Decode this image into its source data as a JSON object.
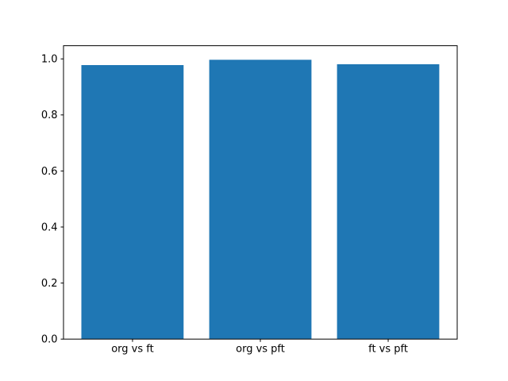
{
  "chart_data": {
    "type": "bar",
    "title": "",
    "xlabel": "",
    "ylabel": "",
    "categories": [
      "org vs ft",
      "org vs pft",
      "ft vs pft"
    ],
    "values": [
      0.978,
      0.997,
      0.981
    ],
    "yticks": [
      0.0,
      0.2,
      0.4,
      0.6,
      0.8,
      1.0
    ],
    "ytick_labels": [
      "0.0",
      "0.2",
      "0.4",
      "0.6",
      "0.8",
      "1.0"
    ],
    "ylim": [
      0,
      1.047
    ],
    "xlim": [
      -0.54,
      2.54
    ],
    "bar_width_data_units": 0.8,
    "grid": false,
    "legend": null,
    "colors": {
      "bar": "#1f77b4",
      "axis": "#000000",
      "text": "#000000",
      "background": "#ffffff"
    }
  }
}
